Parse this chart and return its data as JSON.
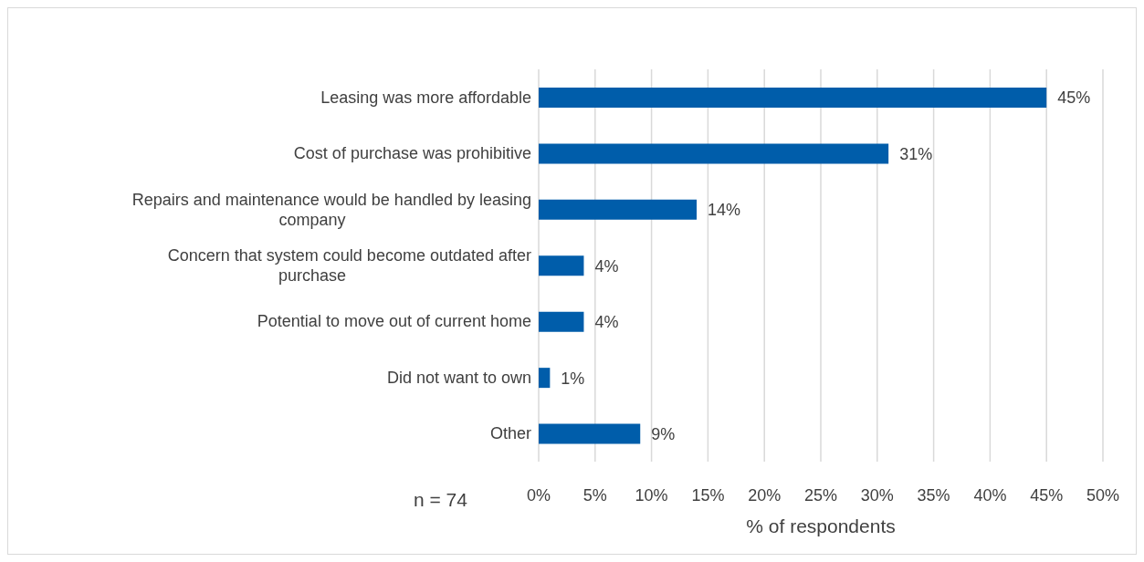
{
  "chart_data": {
    "type": "bar",
    "orientation": "horizontal",
    "categories": [
      "Leasing was more affordable",
      "Cost of purchase was prohibitive",
      "Repairs and maintenance would be handled by leasing company",
      "Concern that system could become outdated after purchase",
      "Potential to move out of current home",
      "Did not want to own",
      "Other"
    ],
    "values": [
      45,
      31,
      14,
      4,
      4,
      1,
      9
    ],
    "value_labels": [
      "45%",
      "31%",
      "14%",
      "4%",
      "4%",
      "1%",
      "9%"
    ],
    "color": "#005daa",
    "xlabel": "% of respondents",
    "xlim": [
      0,
      50
    ],
    "xticks": [
      {
        "value": 0,
        "label": "0%"
      },
      {
        "value": 5,
        "label": "5%"
      },
      {
        "value": 10,
        "label": "10%"
      },
      {
        "value": 15,
        "label": "15%"
      },
      {
        "value": 20,
        "label": "20%"
      },
      {
        "value": 25,
        "label": "25%"
      },
      {
        "value": 30,
        "label": "30%"
      },
      {
        "value": 35,
        "label": "35%"
      },
      {
        "value": 40,
        "label": "40%"
      },
      {
        "value": 45,
        "label": "45%"
      },
      {
        "value": 50,
        "label": "50%"
      }
    ],
    "grid": "x",
    "annotations": [
      "n = 74"
    ]
  }
}
